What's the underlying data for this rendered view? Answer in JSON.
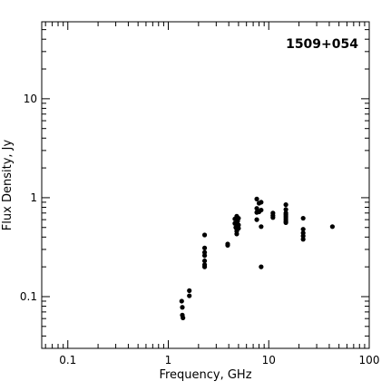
{
  "chart_data": {
    "type": "scatter",
    "title": "1509+054",
    "xlabel": "Frequency, GHz",
    "ylabel": "Flux Density, Jy",
    "xscale": "log",
    "yscale": "log",
    "xlim": [
      0.055,
      100
    ],
    "ylim": [
      0.03,
      60
    ],
    "x_ticks": [
      {
        "value": 0.1,
        "label": "0.1"
      },
      {
        "value": 1,
        "label": "1"
      },
      {
        "value": 10,
        "label": "10"
      },
      {
        "value": 100,
        "label": "100"
      }
    ],
    "y_ticks": [
      {
        "value": 0.1,
        "label": "0.1"
      },
      {
        "value": 1,
        "label": "1"
      },
      {
        "value": 10,
        "label": "10"
      }
    ],
    "grid": false,
    "legend": "none",
    "marker_color": "#000000",
    "points": [
      {
        "x": 1.36,
        "y": 0.09
      },
      {
        "x": 1.38,
        "y": 0.078
      },
      {
        "x": 1.38,
        "y": 0.065
      },
      {
        "x": 1.4,
        "y": 0.061
      },
      {
        "x": 1.62,
        "y": 0.115
      },
      {
        "x": 1.62,
        "y": 0.102
      },
      {
        "x": 2.3,
        "y": 0.42
      },
      {
        "x": 2.3,
        "y": 0.31
      },
      {
        "x": 2.3,
        "y": 0.28
      },
      {
        "x": 2.3,
        "y": 0.26
      },
      {
        "x": 2.3,
        "y": 0.23
      },
      {
        "x": 2.3,
        "y": 0.21
      },
      {
        "x": 2.3,
        "y": 0.2
      },
      {
        "x": 3.9,
        "y": 0.34
      },
      {
        "x": 3.9,
        "y": 0.33
      },
      {
        "x": 4.6,
        "y": 0.61
      },
      {
        "x": 4.6,
        "y": 0.55
      },
      {
        "x": 4.7,
        "y": 0.5
      },
      {
        "x": 4.8,
        "y": 0.46
      },
      {
        "x": 4.8,
        "y": 0.43
      },
      {
        "x": 4.8,
        "y": 0.65
      },
      {
        "x": 4.9,
        "y": 0.58
      },
      {
        "x": 5.0,
        "y": 0.62
      },
      {
        "x": 5.0,
        "y": 0.53
      },
      {
        "x": 5.0,
        "y": 0.49
      },
      {
        "x": 7.6,
        "y": 0.97
      },
      {
        "x": 7.6,
        "y": 0.78
      },
      {
        "x": 7.6,
        "y": 0.71
      },
      {
        "x": 7.6,
        "y": 0.6
      },
      {
        "x": 8.0,
        "y": 0.88
      },
      {
        "x": 8.0,
        "y": 0.72
      },
      {
        "x": 8.4,
        "y": 0.9
      },
      {
        "x": 8.4,
        "y": 0.75
      },
      {
        "x": 8.4,
        "y": 0.51
      },
      {
        "x": 8.4,
        "y": 0.2
      },
      {
        "x": 11.0,
        "y": 0.7
      },
      {
        "x": 11.0,
        "y": 0.66
      },
      {
        "x": 11.0,
        "y": 0.63
      },
      {
        "x": 14.8,
        "y": 0.85
      },
      {
        "x": 14.8,
        "y": 0.76
      },
      {
        "x": 14.8,
        "y": 0.7
      },
      {
        "x": 14.8,
        "y": 0.67
      },
      {
        "x": 14.8,
        "y": 0.64
      },
      {
        "x": 14.8,
        "y": 0.61
      },
      {
        "x": 14.8,
        "y": 0.58
      },
      {
        "x": 14.8,
        "y": 0.56
      },
      {
        "x": 22.0,
        "y": 0.62
      },
      {
        "x": 22.0,
        "y": 0.48
      },
      {
        "x": 22.0,
        "y": 0.44
      },
      {
        "x": 22.0,
        "y": 0.41
      },
      {
        "x": 22.0,
        "y": 0.38
      },
      {
        "x": 43.0,
        "y": 0.51
      }
    ]
  }
}
